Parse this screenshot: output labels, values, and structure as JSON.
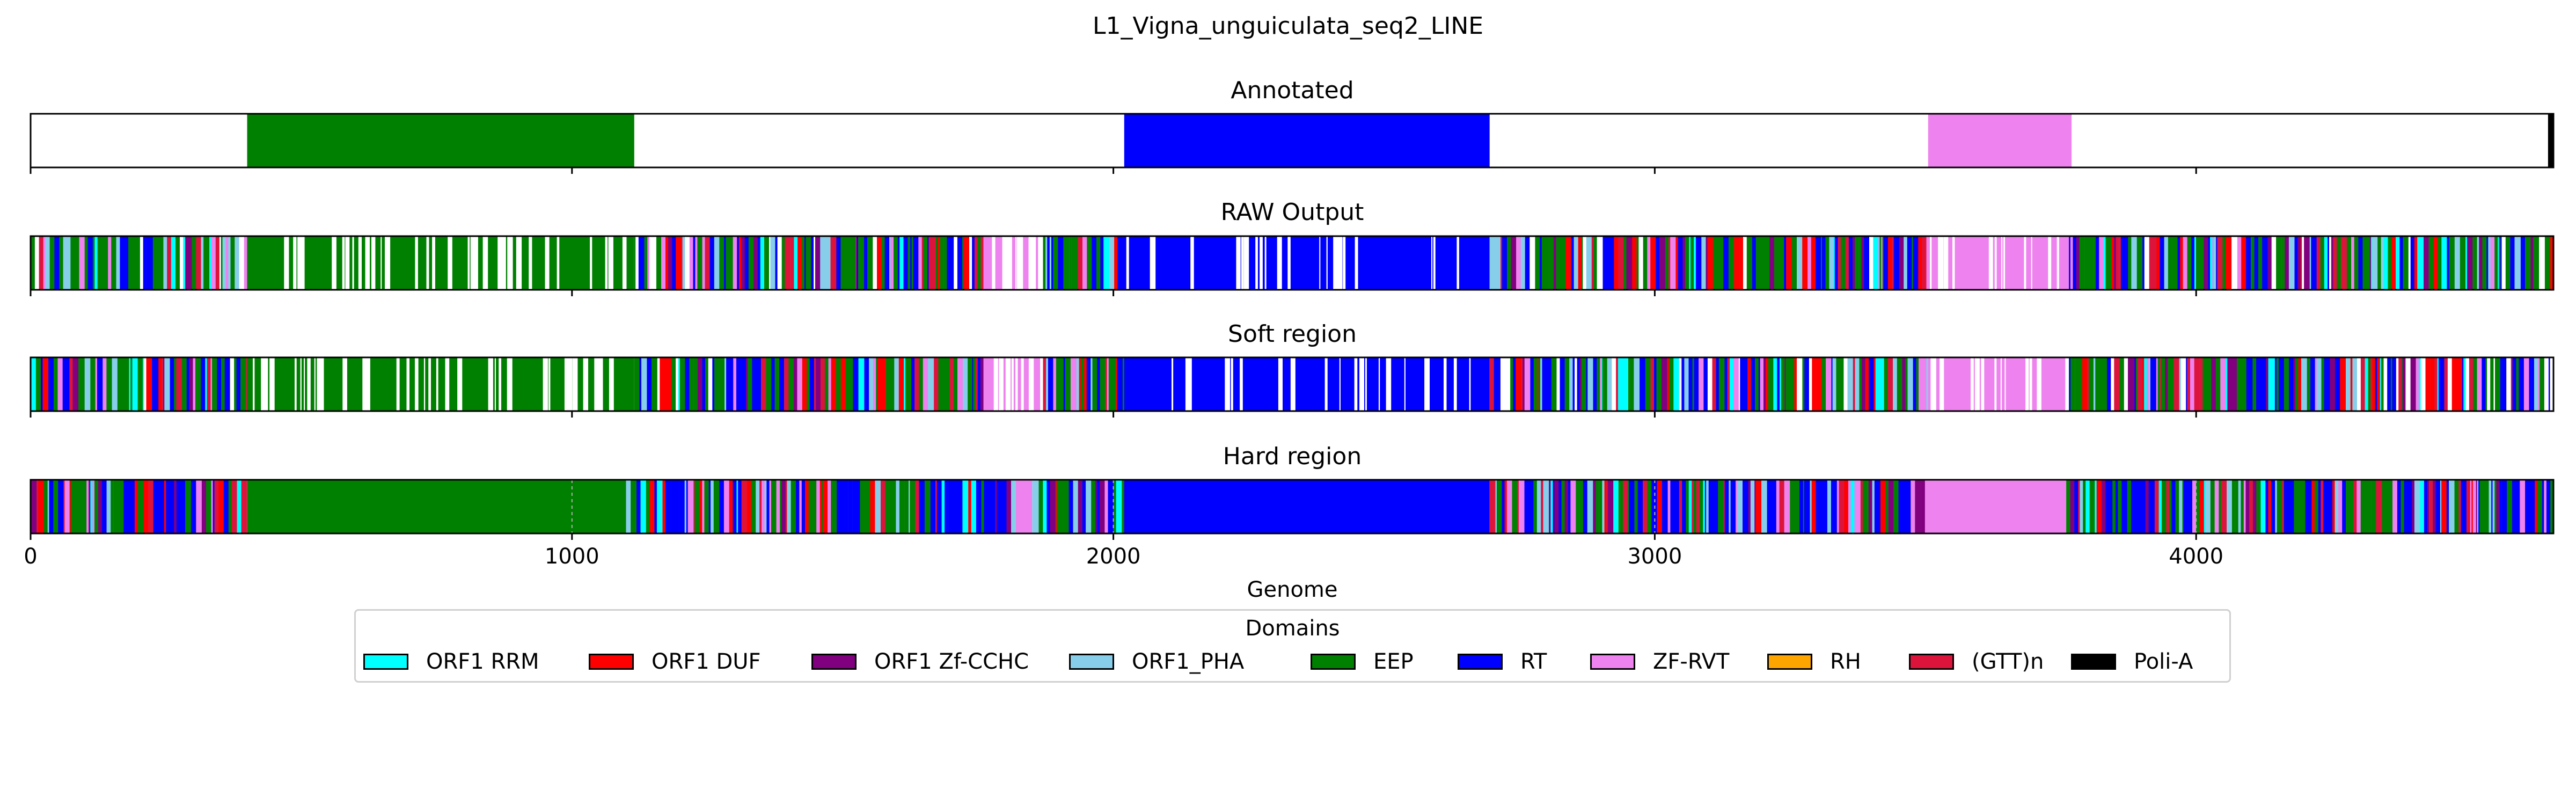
{
  "chart_data": {
    "type": "track",
    "title": "L1_Vigna_unguiculata_seq2_LINE",
    "xlabel": "Genome",
    "xlim": [
      0,
      4660
    ],
    "xticks": [
      0,
      1000,
      2000,
      3000,
      4000
    ],
    "xtick_labels": [
      "0",
      "1000",
      "2000",
      "3000",
      "4000"
    ],
    "domains": [
      {
        "name": "ORF1 RRM",
        "color": "#00ffff"
      },
      {
        "name": "ORF1 DUF",
        "color": "#ff0000"
      },
      {
        "name": "ORF1 Zf-CCHC",
        "color": "#800080"
      },
      {
        "name": "ORF1_PHA",
        "color": "#87ceeb"
      },
      {
        "name": "EEP",
        "color": "#008000"
      },
      {
        "name": "RT",
        "color": "#0000ff"
      },
      {
        "name": "ZF-RVT",
        "color": "#ee82ee"
      },
      {
        "name": "RH",
        "color": "#ffa500"
      },
      {
        "name": "(GTT)n",
        "color": "#dc143c"
      },
      {
        "name": "Poli-A",
        "color": "#000000"
      }
    ],
    "legend": {
      "title": "Domains",
      "placement": "bottom-center"
    },
    "tracks": [
      {
        "title": "Annotated",
        "segments": [
          {
            "domain": "EEP",
            "start": 400,
            "end": 1115
          },
          {
            "domain": "RT",
            "start": 2020,
            "end": 2695
          },
          {
            "domain": "ZF-RVT",
            "start": 3505,
            "end": 3770
          },
          {
            "domain": "Poli-A",
            "start": 4650,
            "end": 4660
          }
        ]
      },
      {
        "title": "RAW Output",
        "segments": [
          {
            "domain": "mixed",
            "start": 0,
            "end": 400
          },
          {
            "domain": "EEP",
            "start": 400,
            "end": 1115
          },
          {
            "domain": "mixed",
            "start": 1115,
            "end": 1760
          },
          {
            "domain": "ZF-RVT",
            "start": 1760,
            "end": 1870
          },
          {
            "domain": "mixed",
            "start": 1870,
            "end": 2020
          },
          {
            "domain": "RT",
            "start": 2020,
            "end": 2695
          },
          {
            "domain": "mixed",
            "start": 2695,
            "end": 3505
          },
          {
            "domain": "ZF-RVT",
            "start": 3505,
            "end": 3765
          },
          {
            "domain": "mixed",
            "start": 3765,
            "end": 4660
          }
        ]
      },
      {
        "title": "Soft region",
        "segments": [
          {
            "domain": "mixed",
            "start": 0,
            "end": 400
          },
          {
            "domain": "EEP",
            "start": 400,
            "end": 1115
          },
          {
            "domain": "mixed",
            "start": 1115,
            "end": 1760
          },
          {
            "domain": "ZF-RVT",
            "start": 1760,
            "end": 1870
          },
          {
            "domain": "mixed",
            "start": 1870,
            "end": 2020
          },
          {
            "domain": "RT",
            "start": 2020,
            "end": 2695
          },
          {
            "domain": "mixed",
            "start": 2695,
            "end": 3505
          },
          {
            "domain": "ZF-RVT",
            "start": 3505,
            "end": 3765
          },
          {
            "domain": "mixed",
            "start": 3765,
            "end": 4660
          }
        ]
      },
      {
        "title": "Hard region",
        "segments": [
          {
            "domain": "mixed",
            "start": 0,
            "end": 400
          },
          {
            "domain": "EEP",
            "start": 400,
            "end": 1100
          },
          {
            "domain": "mixed",
            "start": 1100,
            "end": 1820
          },
          {
            "domain": "ZF-RVT",
            "start": 1820,
            "end": 1850
          },
          {
            "domain": "mixed",
            "start": 1850,
            "end": 2020
          },
          {
            "domain": "RT",
            "start": 2020,
            "end": 2695
          },
          {
            "domain": "mixed",
            "start": 2695,
            "end": 3505
          },
          {
            "domain": "ZF-RVT",
            "start": 3505,
            "end": 3760
          },
          {
            "domain": "mixed",
            "start": 3760,
            "end": 4660
          }
        ]
      }
    ]
  }
}
